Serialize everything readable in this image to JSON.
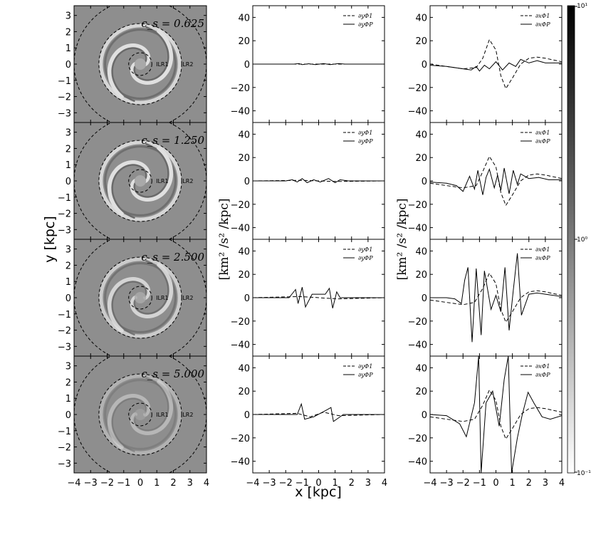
{
  "figure": {
    "left_xlabel": "",
    "left_ylabel": "y [kpc]",
    "center_xlabel": "x [kpc]",
    "mid_ylabel": "[km² /s² /kpc]",
    "right_ylabel": "[km² /s² /kpc]",
    "colorbar_ticks": [
      "10¹",
      "10⁰",
      "10⁻¹"
    ]
  },
  "chart_data": [
    {
      "type": "heatmap",
      "panel": "maps",
      "xlim": [
        -4,
        4
      ],
      "ylim": [
        -3.6,
        3.6
      ],
      "xticks": [
        -4,
        -3,
        -2,
        -1,
        0,
        1,
        2,
        3,
        4
      ],
      "yticks": [
        -3,
        -2,
        -1,
        0,
        1,
        2,
        3
      ],
      "colormap": "gray",
      "rows": [
        {
          "cs_label": "c_s = 0.625",
          "ilr1_radius": 0.7,
          "ilr2_radius": 2.5,
          "ring_label_1": "ILR1",
          "ring_label_2": "ILR2"
        },
        {
          "cs_label": "c_s = 1.250",
          "ilr1_radius": 0.7,
          "ilr2_radius": 2.5,
          "ring_label_1": "ILR1",
          "ring_label_2": "ILR2"
        },
        {
          "cs_label": "c_s = 2.500",
          "ilr1_radius": 0.7,
          "ilr2_radius": 2.5,
          "ring_label_1": "ILR1",
          "ring_label_2": "ILR2"
        },
        {
          "cs_label": "c_s = 5.000",
          "ilr1_radius": 0.7,
          "ilr2_radius": 2.5,
          "ring_label_1": "ILR1",
          "ring_label_2": "ILR2"
        }
      ]
    },
    {
      "type": "line",
      "panel": "middle column (∂y)",
      "xlim": [
        -4,
        4
      ],
      "ylim": [
        -50,
        50
      ],
      "xticks": [
        -4,
        -3,
        -2,
        -1,
        0,
        1,
        2,
        3,
        4
      ],
      "yticks": [
        -40,
        -20,
        0,
        20,
        40
      ],
      "legend": [
        "∂yΦ1",
        "∂yΦP"
      ],
      "rows": [
        {
          "dashed": [
            [
              -4,
              0
            ],
            [
              -1,
              0
            ],
            [
              0,
              0
            ],
            [
              1,
              0
            ],
            [
              4,
              0
            ]
          ],
          "solid": [
            [
              -4,
              0
            ],
            [
              -1.5,
              0
            ],
            [
              -1.2,
              0.5
            ],
            [
              -1,
              -0.5
            ],
            [
              -0.6,
              0.3
            ],
            [
              -0.2,
              -0.4
            ],
            [
              0.3,
              0.5
            ],
            [
              0.7,
              -0.5
            ],
            [
              1.2,
              0.4
            ],
            [
              1.6,
              0
            ],
            [
              4,
              0
            ]
          ]
        },
        {
          "dashed": [
            [
              -4,
              0
            ],
            [
              -1,
              0.5
            ],
            [
              0,
              0
            ],
            [
              1,
              -0.5
            ],
            [
              4,
              0
            ]
          ],
          "solid": [
            [
              -4,
              0
            ],
            [
              -2,
              0
            ],
            [
              -1.6,
              1
            ],
            [
              -1.3,
              -1
            ],
            [
              -1,
              2
            ],
            [
              -0.7,
              -1.5
            ],
            [
              -0.3,
              1
            ],
            [
              0.1,
              -1
            ],
            [
              0.6,
              2
            ],
            [
              1,
              -1.5
            ],
            [
              1.3,
              1
            ],
            [
              1.8,
              0
            ],
            [
              4,
              0
            ]
          ]
        },
        {
          "dashed": [
            [
              -4,
              0
            ],
            [
              -1.2,
              1
            ],
            [
              -0.5,
              0.5
            ],
            [
              0.5,
              -0.5
            ],
            [
              1.2,
              -1
            ],
            [
              4,
              0
            ]
          ],
          "solid": [
            [
              -4,
              0
            ],
            [
              -1.8,
              0
            ],
            [
              -1.4,
              7
            ],
            [
              -1.25,
              -5
            ],
            [
              -1,
              9
            ],
            [
              -0.8,
              -8
            ],
            [
              -0.4,
              3
            ],
            [
              0.4,
              3
            ],
            [
              0.65,
              8
            ],
            [
              0.85,
              -9
            ],
            [
              1.1,
              5
            ],
            [
              1.3,
              0
            ],
            [
              4,
              0
            ]
          ]
        },
        {
          "dashed": [
            [
              -4,
              0
            ],
            [
              -1.3,
              1
            ],
            [
              -0.5,
              -2
            ],
            [
              0.3,
              2
            ],
            [
              1.2,
              -1
            ],
            [
              4,
              0
            ]
          ],
          "solid": [
            [
              -4,
              0
            ],
            [
              -1.3,
              0
            ],
            [
              -1.05,
              9
            ],
            [
              -0.85,
              -4
            ],
            [
              -0.3,
              -2
            ],
            [
              0.5,
              4
            ],
            [
              0.75,
              6
            ],
            [
              0.9,
              -6
            ],
            [
              1.2,
              -3
            ],
            [
              1.5,
              0
            ],
            [
              4,
              0
            ]
          ]
        }
      ]
    },
    {
      "type": "line",
      "panel": "right column (∂x)",
      "xlim": [
        -4,
        4
      ],
      "ylim": [
        -50,
        50
      ],
      "xticks": [
        -4,
        -3,
        -2,
        -1,
        0,
        1,
        2,
        3,
        4
      ],
      "yticks": [
        -40,
        -20,
        0,
        20,
        40
      ],
      "legend": [
        "∂xΦ1",
        "∂xΦP"
      ],
      "rows": [
        {
          "dashed": [
            [
              -4,
              0
            ],
            [
              -3,
              -2
            ],
            [
              -2,
              -4
            ],
            [
              -1.2,
              -3
            ],
            [
              -0.8,
              5
            ],
            [
              -0.4,
              21
            ],
            [
              0,
              12
            ],
            [
              0.3,
              -10
            ],
            [
              0.6,
              -21
            ],
            [
              1,
              -12
            ],
            [
              1.5,
              0
            ],
            [
              2,
              5
            ],
            [
              2.5,
              6
            ],
            [
              3,
              5
            ],
            [
              4,
              2
            ]
          ],
          "solid": [
            [
              -4,
              -1
            ],
            [
              -3,
              -2
            ],
            [
              -2,
              -4
            ],
            [
              -1.5,
              -5
            ],
            [
              -1.2,
              -2
            ],
            [
              -1,
              -6
            ],
            [
              -0.7,
              -1
            ],
            [
              -0.4,
              -4
            ],
            [
              0,
              2
            ],
            [
              0.4,
              -5
            ],
            [
              0.8,
              1
            ],
            [
              1.2,
              -2
            ],
            [
              1.5,
              4
            ],
            [
              2,
              1
            ],
            [
              2.5,
              3
            ],
            [
              3,
              1
            ],
            [
              4,
              1
            ]
          ]
        },
        {
          "dashed": [
            [
              -4,
              -2
            ],
            [
              -3,
              -4
            ],
            [
              -2,
              -6
            ],
            [
              -1.2,
              -4
            ],
            [
              -0.8,
              8
            ],
            [
              -0.4,
              21
            ],
            [
              0,
              12
            ],
            [
              0.3,
              -10
            ],
            [
              0.6,
              -21
            ],
            [
              1,
              -12
            ],
            [
              1.5,
              0
            ],
            [
              2,
              5
            ],
            [
              2.5,
              6
            ],
            [
              3,
              5
            ],
            [
              4,
              2
            ]
          ],
          "solid": [
            [
              -4,
              -1
            ],
            [
              -3,
              -2
            ],
            [
              -2.4,
              -4
            ],
            [
              -2,
              -9
            ],
            [
              -1.6,
              4
            ],
            [
              -1.3,
              -7
            ],
            [
              -1.1,
              9
            ],
            [
              -0.8,
              -12
            ],
            [
              -0.6,
              3
            ],
            [
              -0.4,
              10
            ],
            [
              -0.1,
              -6
            ],
            [
              0.1,
              5
            ],
            [
              0.3,
              -8
            ],
            [
              0.5,
              11
            ],
            [
              0.8,
              -11
            ],
            [
              1.05,
              9
            ],
            [
              1.3,
              -3
            ],
            [
              1.5,
              6
            ],
            [
              2,
              2
            ],
            [
              2.6,
              3
            ],
            [
              3.2,
              1
            ],
            [
              4,
              1
            ]
          ]
        },
        {
          "dashed": [
            [
              -4,
              -2
            ],
            [
              -3,
              -4
            ],
            [
              -2,
              -6
            ],
            [
              -1.3,
              -4
            ],
            [
              -0.8,
              8
            ],
            [
              -0.4,
              21
            ],
            [
              0,
              12
            ],
            [
              0.3,
              -10
            ],
            [
              0.6,
              -21
            ],
            [
              1,
              -12
            ],
            [
              1.5,
              0
            ],
            [
              2,
              5
            ],
            [
              2.5,
              6
            ],
            [
              3,
              5
            ],
            [
              4,
              2
            ]
          ],
          "solid": [
            [
              -4,
              0
            ],
            [
              -3,
              0
            ],
            [
              -2.5,
              -1
            ],
            [
              -2.1,
              -5
            ],
            [
              -1.9,
              15
            ],
            [
              -1.7,
              26
            ],
            [
              -1.45,
              -38
            ],
            [
              -1.2,
              25
            ],
            [
              -0.9,
              -32
            ],
            [
              -0.7,
              23
            ],
            [
              -0.3,
              -10
            ],
            [
              0,
              2
            ],
            [
              0.3,
              -12
            ],
            [
              0.55,
              26
            ],
            [
              0.8,
              -28
            ],
            [
              1.05,
              6
            ],
            [
              1.3,
              38
            ],
            [
              1.55,
              -15
            ],
            [
              2,
              3
            ],
            [
              2.5,
              4
            ],
            [
              3,
              3
            ],
            [
              4,
              1
            ]
          ]
        },
        {
          "dashed": [
            [
              -4,
              -2
            ],
            [
              -3,
              -4
            ],
            [
              -2,
              -6
            ],
            [
              -1.3,
              -4
            ],
            [
              -0.8,
              8
            ],
            [
              -0.4,
              21
            ],
            [
              0,
              12
            ],
            [
              0.3,
              -10
            ],
            [
              0.6,
              -21
            ],
            [
              1,
              -12
            ],
            [
              1.5,
              0
            ],
            [
              2,
              5
            ],
            [
              2.5,
              6
            ],
            [
              3,
              5
            ],
            [
              4,
              2
            ]
          ],
          "solid": [
            [
              -4,
              0
            ],
            [
              -3,
              -1
            ],
            [
              -2.2,
              -8
            ],
            [
              -1.8,
              -19
            ],
            [
              -1.3,
              10
            ],
            [
              -1.05,
              50
            ],
            [
              -0.9,
              -50
            ],
            [
              -0.6,
              10
            ],
            [
              -0.2,
              20
            ],
            [
              0.2,
              -10
            ],
            [
              0.5,
              30
            ],
            [
              0.75,
              50
            ],
            [
              0.95,
              -50
            ],
            [
              1.3,
              -20
            ],
            [
              1.6,
              0
            ],
            [
              1.95,
              19
            ],
            [
              2.3,
              10
            ],
            [
              2.8,
              -2
            ],
            [
              3.3,
              -4
            ],
            [
              4,
              -1
            ]
          ]
        }
      ]
    }
  ]
}
